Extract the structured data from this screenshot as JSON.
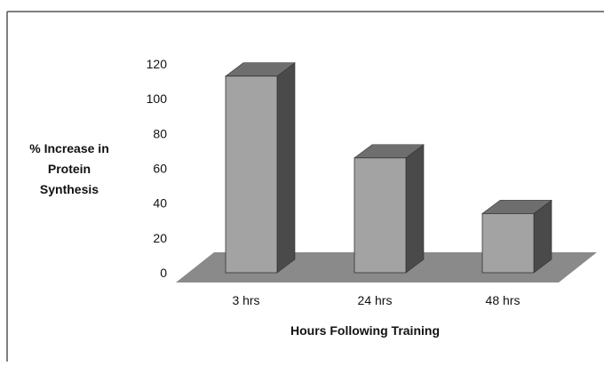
{
  "chart_data": {
    "type": "bar",
    "categories": [
      "3 hrs",
      "24 hrs",
      "48 hrs"
    ],
    "values": [
      113,
      66,
      34
    ],
    "title": "",
    "xlabel": "Hours Following Training",
    "ylabel_lines": [
      "% Increase in",
      "Protein",
      "Synthesis"
    ],
    "ylim": [
      0,
      120
    ],
    "yticks": [
      "0",
      "20",
      "40",
      "60",
      "80",
      "100",
      "120"
    ],
    "style": "3d-bar",
    "colors": {
      "bar_front": "#a3a3a3",
      "bar_top": "#6e6e6e",
      "bar_side": "#4a4a4a",
      "floor": "#8a8a8a",
      "border": "#555555"
    }
  }
}
